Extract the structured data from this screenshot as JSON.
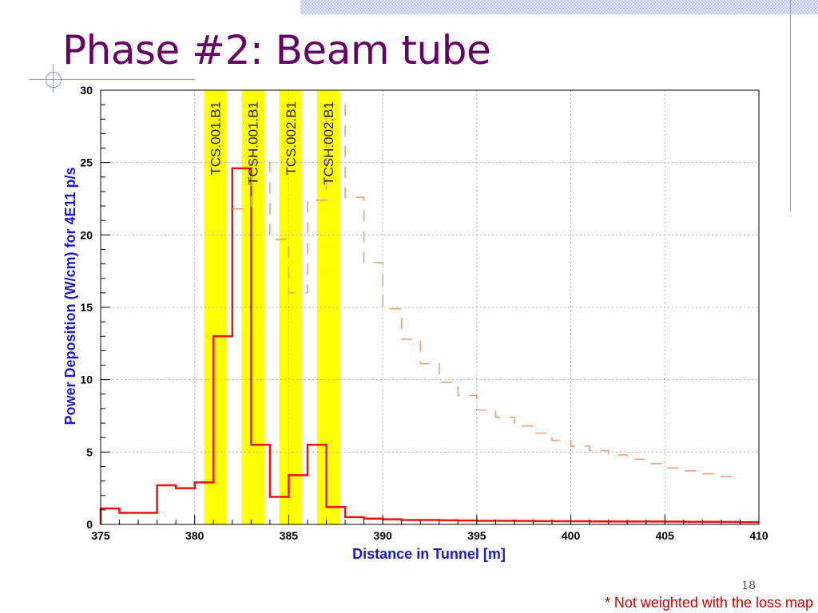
{
  "slide": {
    "title": "Phase #2: Beam tube",
    "page_number": "18",
    "footnote": "* Not weighted with the loss map"
  },
  "colors": {
    "title": "#660066",
    "solid_series": "#ee1111",
    "dashed_series": "#f0a070",
    "collimator_band": "#ffff00",
    "axis_title": "#1a1acc",
    "footnote": "#cc0000"
  },
  "chart_data": {
    "type": "line",
    "title": "",
    "xlabel": "Distance in Tunnel [m]",
    "ylabel": "Power Deposition (W/cm) for 4E11 p/s",
    "xlim": [
      375,
      410
    ],
    "ylim": [
      0,
      30
    ],
    "x_ticks": [
      375,
      380,
      385,
      390,
      395,
      400,
      405,
      410
    ],
    "y_ticks": [
      0,
      5,
      10,
      15,
      20,
      25,
      30
    ],
    "grid": true,
    "collimators": [
      {
        "label": "TCS.001.B1",
        "x_start": 380.5,
        "x_end": 381.7
      },
      {
        "label": "TCSH.001.B1",
        "x_start": 382.5,
        "x_end": 383.7
      },
      {
        "label": "TCS.002.B1",
        "x_start": 384.5,
        "x_end": 385.7
      },
      {
        "label": "TCSH.002.B1",
        "x_start": 386.5,
        "x_end": 387.7
      }
    ],
    "series": [
      {
        "style": "solid",
        "color": "#ee1111",
        "bin_edges": [
          375,
          376,
          377,
          378,
          379,
          380,
          381,
          382,
          383,
          384,
          385,
          386,
          387,
          388,
          389,
          390,
          391,
          392,
          393,
          394,
          395,
          396,
          397,
          398,
          399,
          400,
          401,
          402,
          403,
          404,
          405,
          406,
          407,
          408,
          409,
          410
        ],
        "values": [
          1.1,
          0.8,
          0.8,
          2.7,
          2.5,
          2.9,
          13.0,
          24.6,
          5.5,
          1.9,
          3.4,
          5.5,
          1.2,
          0.5,
          0.4,
          0.35,
          0.3,
          0.3,
          0.28,
          0.27,
          0.25,
          0.25,
          0.24,
          0.23,
          0.22,
          0.22,
          0.21,
          0.2,
          0.2,
          0.2,
          0.19,
          0.18,
          0.18,
          0.17,
          0.15
        ]
      },
      {
        "style": "dashed",
        "color": "#f0a070",
        "bin_edges": [
          382,
          383,
          384,
          385,
          386,
          387,
          388,
          389,
          390,
          391,
          392,
          393,
          394,
          395,
          396,
          397,
          398,
          399,
          400,
          401,
          402,
          403,
          404,
          405,
          406,
          407,
          408,
          409
        ],
        "values": [
          21.8,
          25.0,
          19.7,
          16.0,
          22.4,
          29.0,
          22.6,
          18.1,
          14.9,
          12.8,
          11.1,
          9.8,
          8.9,
          7.9,
          7.4,
          6.8,
          6.3,
          5.8,
          5.4,
          5.1,
          4.8,
          4.5,
          4.2,
          3.9,
          3.7,
          3.5,
          3.3
        ]
      }
    ]
  }
}
